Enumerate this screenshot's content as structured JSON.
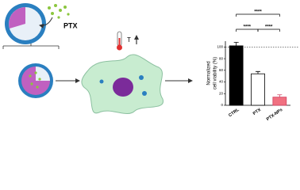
{
  "labels": {
    "drug": "PTX",
    "temperature": "T"
  },
  "chart_data": {
    "type": "bar",
    "ylabel": [
      "Normalized",
      "cell viability (%)"
    ],
    "categories": [
      "CTRL",
      "PTX",
      "PTX-NPs"
    ],
    "values": [
      102,
      54,
      14
    ],
    "errors": [
      6,
      4,
      4
    ],
    "colors": [
      "#000000",
      "#ffffff",
      "#f07080"
    ],
    "edgecolors": [
      "#000000",
      "#000000",
      "#d04060"
    ],
    "ylim": [
      0,
      110
    ],
    "yticks": [
      0,
      20,
      40,
      60,
      80,
      100
    ],
    "reference_line": 100,
    "significance": [
      {
        "label": "****",
        "between": [
          "CTRL",
          "PTX-NPs"
        ]
      },
      {
        "label": "****",
        "between": [
          "CTRL",
          "PTX"
        ]
      },
      {
        "label": "****",
        "between": [
          "PTX",
          "PTX-NPs"
        ]
      }
    ]
  }
}
